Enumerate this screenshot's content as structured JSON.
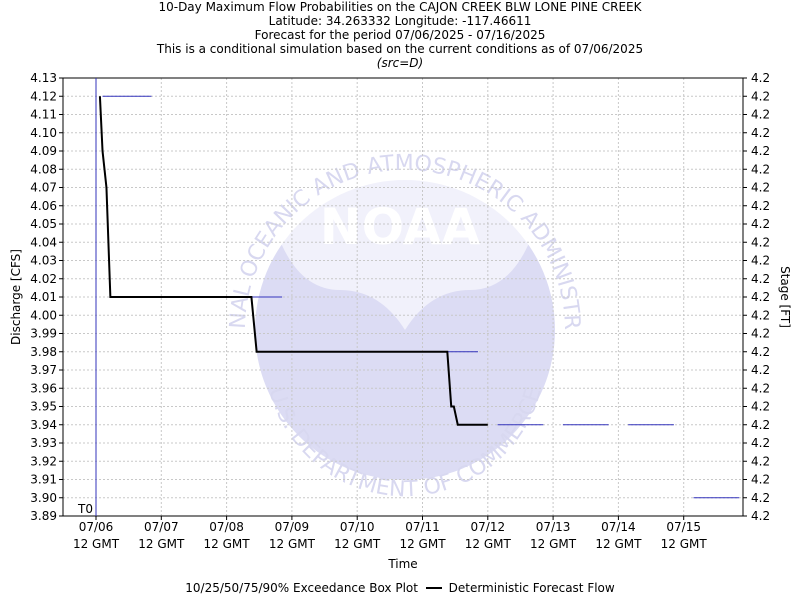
{
  "titles": {
    "line1": "10-Day Maximum Flow Probabilities on the CAJON CREEK BLW LONE PINE CREEK",
    "line2": "Latitude: 34.263332 Longitude: -117.46611",
    "line3": "Forecast for the period 07/06/2025 - 07/16/2025",
    "line4": "This is a conditional simulation based on the current conditions as of 07/06/2025",
    "line5": "(src=D)"
  },
  "watermark": {
    "logo_text": "NOAA",
    "arc_top": "NATIONAL OCEANIC AND ATMOSPHERIC ADMINISTRATION",
    "arc_bottom": "U.S. DEPARTMENT OF COMMERCE"
  },
  "legend": {
    "box_plot": "10/25/50/75/90% Exceedance Box Plot",
    "forecast": "Deterministic Forecast Flow"
  },
  "colors": {
    "forecast_line": "#000000",
    "box_plot": "#3333bb",
    "t0_line": "#3333bb",
    "grid": "#c8c8c8",
    "watermark": "#dcdcf4"
  },
  "chart_data": {
    "type": "line",
    "xlabel": "Time",
    "ylabel": "Discharge [CFS]",
    "y2label": "Stage [FT]",
    "ylim": [
      3.89,
      4.13
    ],
    "y_ticks": [
      "4.13",
      "4.12",
      "4.11",
      "4.10",
      "4.09",
      "4.08",
      "4.07",
      "4.06",
      "4.05",
      "4.04",
      "4.03",
      "4.02",
      "4.01",
      "4.00",
      "3.99",
      "3.98",
      "3.97",
      "3.96",
      "3.95",
      "3.94",
      "3.93",
      "3.92",
      "3.91",
      "3.90",
      "3.89"
    ],
    "y2_tick_label": "4.2",
    "x_ticks": [
      {
        "date": "07/06",
        "time": "12 GMT"
      },
      {
        "date": "07/07",
        "time": "12 GMT"
      },
      {
        "date": "07/08",
        "time": "12 GMT"
      },
      {
        "date": "07/09",
        "time": "12 GMT"
      },
      {
        "date": "07/10",
        "time": "12 GMT"
      },
      {
        "date": "07/11",
        "time": "12 GMT"
      },
      {
        "date": "07/12",
        "time": "12 GMT"
      },
      {
        "date": "07/13",
        "time": "12 GMT"
      },
      {
        "date": "07/14",
        "time": "12 GMT"
      },
      {
        "date": "07/15",
        "time": "12 GMT"
      }
    ],
    "t0_label": "T0",
    "t0_day": 0,
    "grid": true,
    "legend_position": "bottom",
    "series": [
      {
        "name": "Deterministic Forecast Flow",
        "days": [
          0.06,
          0.1,
          0.16,
          0.22,
          2.38,
          2.46,
          5.38,
          5.44,
          5.48,
          5.54,
          6.0
        ],
        "values": [
          4.12,
          4.09,
          4.07,
          4.01,
          4.01,
          3.98,
          3.98,
          3.95,
          3.95,
          3.94,
          3.94
        ]
      }
    ],
    "box_plot_levels": [
      {
        "start_day": 0.1,
        "end_day": 0.85,
        "value": 4.12
      },
      {
        "start_day": 2.38,
        "end_day": 2.85,
        "value": 4.01
      },
      {
        "start_day": 5.38,
        "end_day": 5.85,
        "value": 3.98
      },
      {
        "start_day": 6.15,
        "end_day": 6.85,
        "value": 3.94
      },
      {
        "start_day": 7.15,
        "end_day": 7.85,
        "value": 3.94
      },
      {
        "start_day": 8.15,
        "end_day": 8.85,
        "value": 3.94
      },
      {
        "start_day": 9.15,
        "end_day": 9.85,
        "value": 3.9
      }
    ]
  }
}
